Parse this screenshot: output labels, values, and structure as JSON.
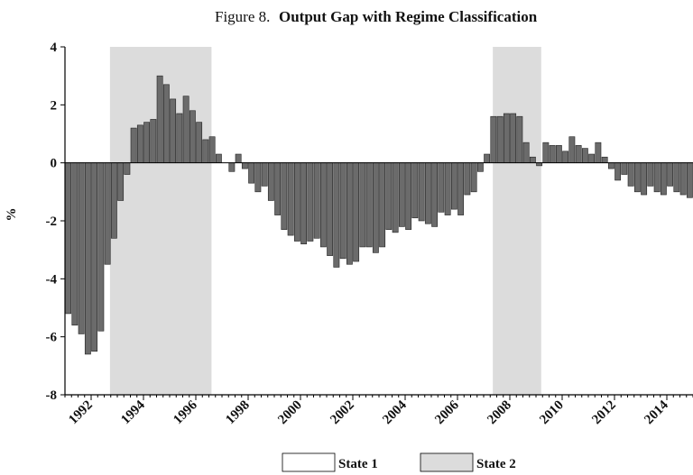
{
  "chart_data": {
    "type": "bar",
    "figure_label": "Figure 8.",
    "title": "Output Gap with Regime Classification",
    "ylabel": "%",
    "color": "#6b6b6b",
    "shade_color": "#dcdcdc",
    "x": [
      1991.0,
      1991.25,
      1991.5,
      1991.75,
      1992.0,
      1992.25,
      1992.5,
      1992.75,
      1993.0,
      1993.25,
      1993.5,
      1993.75,
      1994.0,
      1994.25,
      1994.5,
      1994.75,
      1995.0,
      1995.25,
      1995.5,
      1995.75,
      1996.0,
      1996.25,
      1996.5,
      1996.75,
      1997.0,
      1997.25,
      1997.5,
      1997.75,
      1998.0,
      1998.25,
      1998.5,
      1998.75,
      1999.0,
      1999.25,
      1999.5,
      1999.75,
      2000.0,
      2000.25,
      2000.5,
      2000.75,
      2001.0,
      2001.25,
      2001.5,
      2001.75,
      2002.0,
      2002.25,
      2002.5,
      2002.75,
      2003.0,
      2003.25,
      2003.5,
      2003.75,
      2004.0,
      2004.25,
      2004.5,
      2004.75,
      2005.0,
      2005.25,
      2005.5,
      2005.75,
      2006.0,
      2006.25,
      2006.5,
      2006.75,
      2007.0,
      2007.25,
      2007.5,
      2007.75,
      2008.0,
      2008.25,
      2008.5,
      2008.75,
      2009.0,
      2009.25,
      2009.5,
      2009.75,
      2010.0,
      2010.25,
      2010.5,
      2010.75,
      2011.0,
      2011.25,
      2011.5,
      2011.75,
      2012.0,
      2012.25,
      2012.5,
      2012.75,
      2013.0,
      2013.25,
      2013.5,
      2013.75,
      2014.0,
      2014.25,
      2014.5,
      2014.75
    ],
    "values": [
      -5.2,
      -5.6,
      -5.9,
      -6.6,
      -6.5,
      -5.8,
      -3.5,
      -2.6,
      -1.3,
      -0.4,
      1.2,
      1.3,
      1.4,
      1.5,
      3.0,
      2.7,
      2.2,
      1.7,
      2.3,
      1.8,
      1.4,
      0.8,
      0.9,
      0.3,
      0.0,
      -0.3,
      0.3,
      -0.2,
      -0.7,
      -1.0,
      -0.8,
      -1.3,
      -1.8,
      -2.3,
      -2.5,
      -2.7,
      -2.8,
      -2.7,
      -2.6,
      -2.9,
      -3.2,
      -3.6,
      -3.3,
      -3.5,
      -3.4,
      -2.9,
      -2.9,
      -3.1,
      -2.9,
      -2.3,
      -2.4,
      -2.2,
      -2.3,
      -1.9,
      -2.0,
      -2.1,
      -2.2,
      -1.7,
      -1.8,
      -1.6,
      -1.8,
      -1.1,
      -1.0,
      -0.3,
      0.3,
      1.6,
      1.6,
      1.7,
      1.7,
      1.6,
      0.7,
      0.2,
      -0.1,
      0.7,
      0.6,
      0.6,
      0.4,
      0.9,
      0.6,
      0.5,
      0.3,
      0.7,
      0.2,
      -0.2,
      -0.6,
      -0.4,
      -0.8,
      -1.0,
      -1.1,
      -0.8,
      -1.0,
      -1.1,
      -0.8,
      -1.0,
      -1.1,
      -1.2
    ],
    "regimes": [
      {
        "start": 1992.72,
        "end": 1996.6
      },
      {
        "start": 2007.35,
        "end": 2009.2
      }
    ],
    "legend": [
      "State 1",
      "State 2"
    ],
    "xlim": [
      1991,
      2015
    ],
    "xticks": [
      1992,
      1994,
      1996,
      1998,
      2000,
      2002,
      2004,
      2006,
      2008,
      2010,
      2012,
      2014
    ],
    "ylim": [
      -8,
      4
    ],
    "yticks": [
      -8,
      -6,
      -4,
      -2,
      0,
      2,
      4
    ]
  }
}
